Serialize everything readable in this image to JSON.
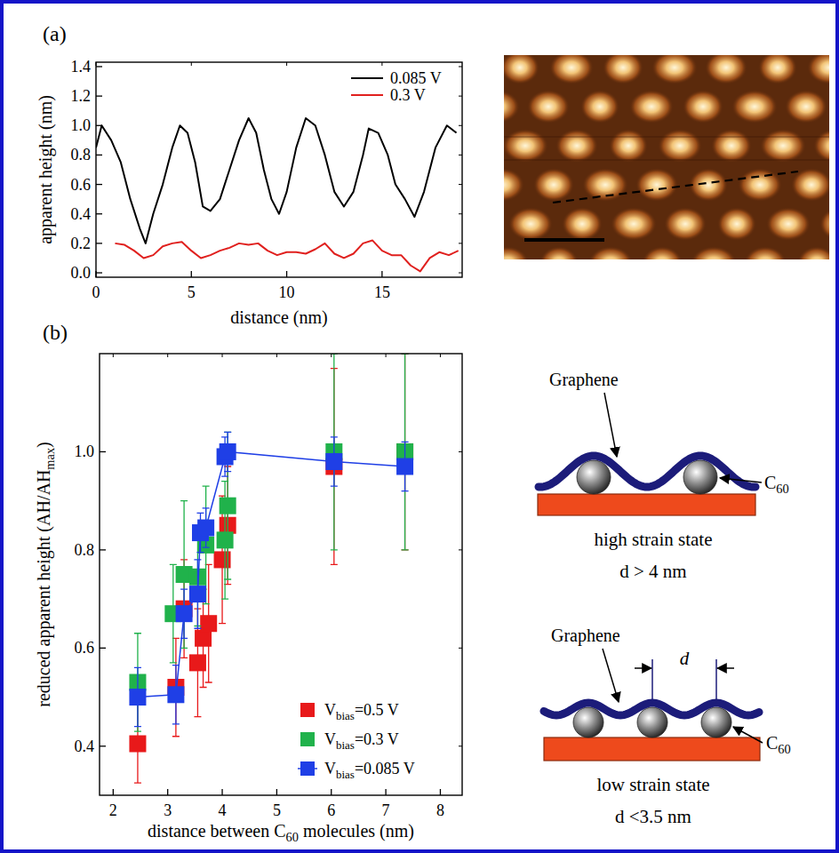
{
  "panels": [
    "(a)",
    "(b)"
  ],
  "chart_data": [
    {
      "type": "line",
      "x_label": "distance (nm)",
      "y_label": "apparent height (nm)",
      "xlim": [
        0,
        19.2
      ],
      "ylim": [
        -0.03,
        1.43
      ],
      "xticks": [
        0,
        5,
        10,
        15
      ],
      "yticks": [
        {
          "value": 0,
          "label": "0.0"
        },
        0.2,
        0.4,
        0.6,
        0.8,
        {
          "value": 1,
          "label": "1.0"
        },
        1.2,
        1.4
      ],
      "legend": "upper right",
      "series": [
        {
          "name": "0.085 V",
          "color": "#000000",
          "line_style": "solid",
          "x": [
            0,
            0.3,
            0.8,
            1.3,
            1.8,
            2.3,
            2.6,
            3.0,
            3.5,
            4.0,
            4.4,
            4.8,
            5.2,
            5.6,
            6.0,
            6.5,
            7.0,
            7.5,
            8.0,
            8.4,
            8.8,
            9.2,
            9.6,
            10.0,
            10.5,
            11.0,
            11.5,
            12.0,
            12.5,
            13.0,
            13.5,
            14.0,
            14.3,
            14.8,
            15.3,
            15.7,
            16.2,
            16.7,
            17.2,
            17.8,
            18.4,
            18.9
          ],
          "values": [
            0.85,
            1.0,
            0.9,
            0.75,
            0.5,
            0.3,
            0.2,
            0.4,
            0.6,
            0.85,
            1.0,
            0.95,
            0.75,
            0.45,
            0.42,
            0.5,
            0.7,
            0.9,
            1.05,
            0.95,
            0.7,
            0.5,
            0.4,
            0.55,
            0.85,
            1.05,
            1.0,
            0.8,
            0.55,
            0.45,
            0.55,
            0.8,
            0.98,
            0.95,
            0.8,
            0.6,
            0.5,
            0.38,
            0.55,
            0.85,
            1.0,
            0.95
          ]
        },
        {
          "name": "0.3 V",
          "color": "#e0201e",
          "line_style": "solid",
          "x": [
            1.0,
            1.5,
            2.0,
            2.5,
            3.0,
            3.5,
            4.0,
            4.5,
            5.0,
            5.5,
            6.0,
            6.5,
            7.0,
            7.5,
            8.0,
            8.5,
            9.0,
            9.5,
            10.0,
            10.5,
            11.0,
            11.5,
            12.0,
            12.5,
            13.0,
            13.5,
            14.0,
            14.5,
            15.0,
            15.5,
            16.0,
            16.5,
            17.0,
            17.5,
            18.0,
            18.5,
            19.0
          ],
          "values": [
            0.2,
            0.19,
            0.15,
            0.1,
            0.12,
            0.18,
            0.2,
            0.21,
            0.15,
            0.1,
            0.12,
            0.15,
            0.17,
            0.2,
            0.19,
            0.2,
            0.15,
            0.12,
            0.14,
            0.14,
            0.13,
            0.16,
            0.2,
            0.13,
            0.1,
            0.13,
            0.2,
            0.22,
            0.15,
            0.12,
            0.12,
            0.05,
            0.01,
            0.1,
            0.14,
            0.12,
            0.15
          ]
        }
      ]
    },
    {
      "type": "scatter",
      "x_label": "distance between C60 molecules (nm)",
      "y_label": "reduced apparent height (AH/AHmax)",
      "xlim": [
        1.75,
        8.4
      ],
      "ylim": [
        0.3,
        1.2
      ],
      "xticks": [
        2,
        3,
        4,
        5,
        6,
        7,
        8
      ],
      "yticks": [
        0.4,
        0.6,
        0.8,
        {
          "value": 1,
          "label": "1.0"
        }
      ],
      "legend": "lower right",
      "series": [
        {
          "name": "Vbias=0.5 V",
          "color": "#e8191a",
          "marker": "square",
          "line_style": "none",
          "x": [
            2.45,
            3.15,
            3.3,
            3.55,
            3.65,
            3.75,
            4.0,
            4.1,
            6.05,
            7.35
          ],
          "values": [
            0.405,
            0.52,
            0.68,
            0.57,
            0.62,
            0.65,
            0.78,
            0.85,
            0.97,
            1.0
          ],
          "errors": [
            0.08,
            0.1,
            0.1,
            0.11,
            0.1,
            0.12,
            0.13,
            0.12,
            0.2,
            0.2
          ]
        },
        {
          "name": "Vbias=0.3 V",
          "color": "#20b24b",
          "marker": "square",
          "line_style": "none",
          "x": [
            2.45,
            3.1,
            3.3,
            3.55,
            3.7,
            4.05,
            4.1,
            6.05,
            7.35
          ],
          "values": [
            0.53,
            0.67,
            0.75,
            0.745,
            0.81,
            0.82,
            0.89,
            1.0,
            1.0
          ],
          "errors": [
            0.1,
            0.1,
            0.15,
            0.1,
            0.12,
            0.12,
            0.15,
            0.2,
            0.2
          ]
        },
        {
          "name": "Vbias=0.085 V",
          "color": "#1f3fe6",
          "marker": "square",
          "line_style": "solid",
          "x": [
            2.45,
            3.15,
            3.3,
            3.55,
            3.6,
            3.7,
            4.05,
            4.1,
            6.05,
            7.35
          ],
          "values": [
            0.5,
            0.505,
            0.67,
            0.71,
            0.835,
            0.845,
            0.99,
            1.0,
            0.98,
            0.97
          ],
          "errors": [
            0.06,
            0.06,
            0.05,
            0.07,
            0.04,
            0.04,
            0.04,
            0.04,
            0.05,
            0.05
          ]
        }
      ]
    }
  ],
  "diagram": {
    "high_strain": {
      "graphene": "Graphene",
      "c60": "C60",
      "state": "high strain state",
      "condition": "d > 4 nm"
    },
    "low_strain": {
      "graphene": "Graphene",
      "d": "d",
      "c60": "C60",
      "state": "low strain state",
      "condition": "d <3.5 nm"
    }
  }
}
